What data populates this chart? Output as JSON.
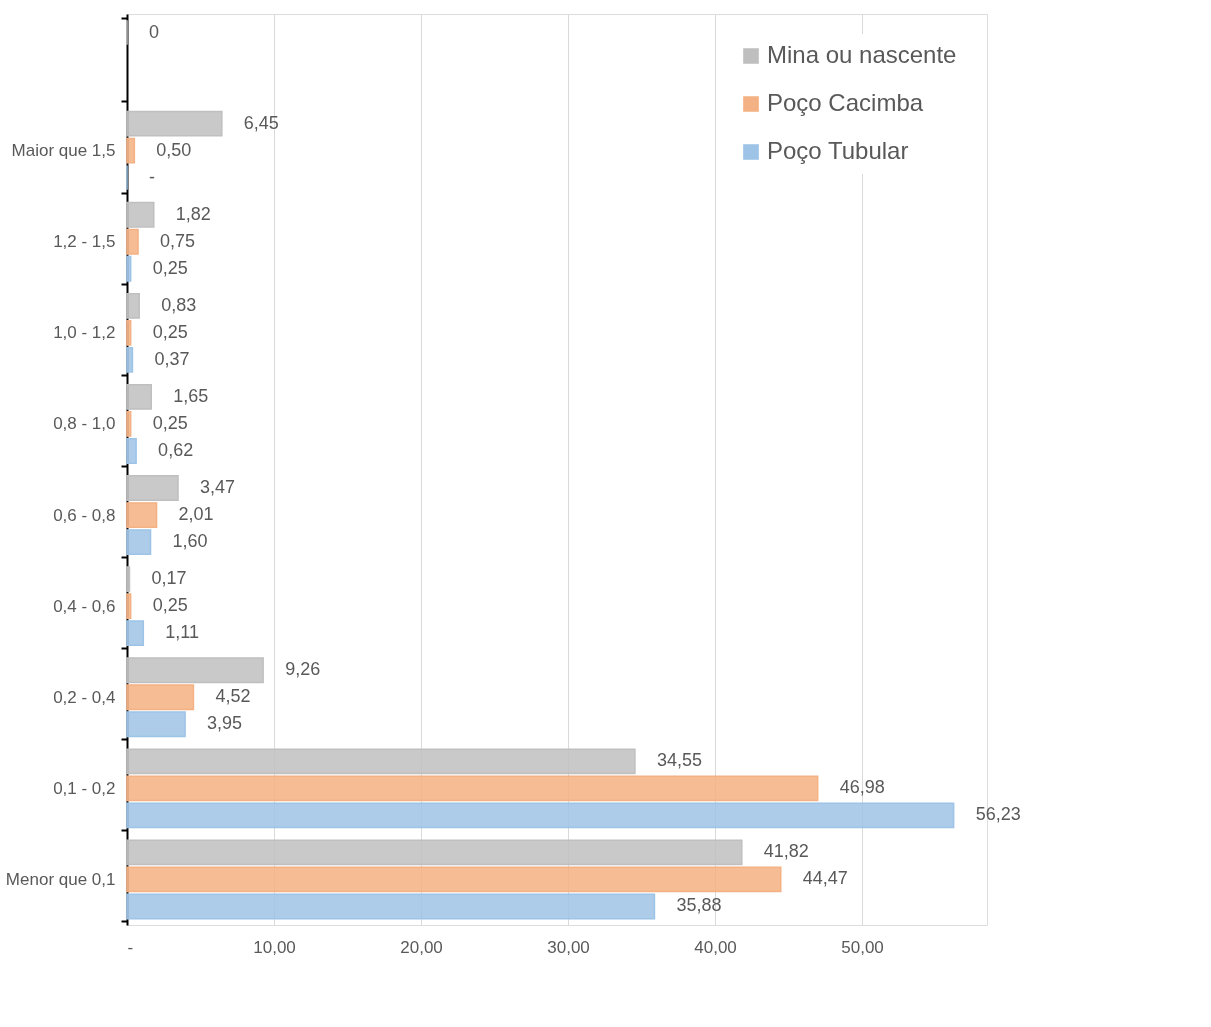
{
  "chart_data": {
    "type": "bar",
    "orientation": "horizontal",
    "categories": [
      null,
      "Maior que 1,5",
      "1,2 - 1,5",
      "1,0 - 1,2",
      "0,8 - 1,0",
      "0,6 - 0,8",
      "0,4 - 0,6",
      "0,2 - 0,4",
      "0,1 - 0,2",
      "Menor que 0,1"
    ],
    "series": [
      {
        "name": "Mina ou nascente",
        "color": "#bfbfbf",
        "values": [
          0,
          6.45,
          1.82,
          0.83,
          1.65,
          3.47,
          0.17,
          9.26,
          34.55,
          41.82
        ],
        "value_labels": [
          "0",
          "6,45",
          "1,82",
          "0,83",
          "1,65",
          "3,47",
          "0,17",
          "9,26",
          "34,55",
          "41,82"
        ]
      },
      {
        "name": "Poço Cacimba",
        "color": "#f4b183",
        "values": [
          null,
          0.5,
          0.75,
          0.25,
          0.25,
          2.01,
          0.25,
          4.52,
          46.98,
          44.47
        ],
        "value_labels": [
          null,
          "0,50",
          "0,75",
          "0,25",
          "0,25",
          "2,01",
          "0,25",
          "4,52",
          "46,98",
          "44,47"
        ]
      },
      {
        "name": "Poço Tubular",
        "color": "#9dc3e6",
        "values": [
          null,
          0,
          0.25,
          0.37,
          0.62,
          1.6,
          1.11,
          3.95,
          56.23,
          35.88
        ],
        "value_labels": [
          null,
          "-",
          "0,25",
          "0,37",
          "0,62",
          "1,60",
          "1,11",
          "3,95",
          "56,23",
          "35,88"
        ]
      }
    ],
    "xlim": [
      0,
      58.5
    ],
    "xticks": [
      {
        "value": 0,
        "label": "-"
      },
      {
        "value": 10,
        "label": "10,00"
      },
      {
        "value": 20,
        "label": "20,00"
      },
      {
        "value": 30,
        "label": "30,00"
      },
      {
        "value": 40,
        "label": "40,00"
      },
      {
        "value": 50,
        "label": "50,00"
      }
    ],
    "grid": "x",
    "legend": "top right"
  }
}
